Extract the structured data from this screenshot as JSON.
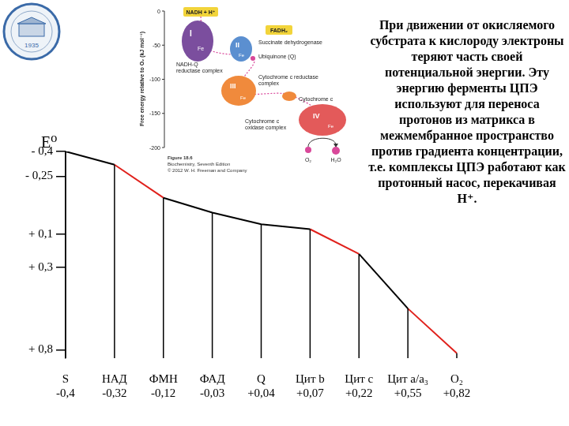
{
  "chart_data": {
    "type": "line",
    "y_label": "E⁰",
    "categories": [
      "S",
      "НАД",
      "ФМН",
      "ФАД",
      "Q",
      "Цит b",
      "Цит c",
      "Цит a/a₃",
      "O₂"
    ],
    "values": [
      -0.4,
      -0.32,
      -0.12,
      -0.03,
      0.04,
      0.07,
      0.22,
      0.55,
      0.82
    ],
    "value_labels": [
      "-0,4",
      "-0,32",
      "-0,12",
      "-0,03",
      "+0,04",
      "+0,07",
      "+0,22",
      "+0,55",
      "+0,82"
    ],
    "colors": [
      "#000000",
      "#000000",
      "#e0201b",
      "#000000",
      "#000000",
      "#000000",
      "#e0201b",
      "#000000",
      "#e0201b"
    ],
    "ylim": [
      -0.4,
      0.85
    ],
    "yticks": [
      {
        "value": -0.4,
        "label": "- 0,4"
      },
      {
        "value": -0.25,
        "label": "- 0,25"
      },
      {
        "value": 0.1,
        "label": "+ 0,1"
      },
      {
        "value": 0.3,
        "label": "+ 0,3"
      },
      {
        "value": 0.8,
        "label": "+ 0,8"
      }
    ],
    "grid": false
  },
  "text_block": "При движении от окисляемого субстрата к кислороду электроны теряют часть своей потенциальной энергии. Эту энергию ферменты ЦПЭ используют для переноса протонов из матрикса в межмембранное пространство против градиента концентрации, т.е. комплексы ЦПЭ работают как протонный насос, перекачивая H⁺.",
  "inset": {
    "y_label": "Free energy relative to O₂ (kJ mol⁻¹)",
    "ylim": [
      -200,
      0
    ],
    "yticks": [
      0,
      -50,
      -100,
      -150,
      -200
    ],
    "labels": {
      "nadh": "NADH + H⁺",
      "fadh": "FADH₂",
      "succ": "Succinate dehydrogenase",
      "c1": [
        "NADH-Q",
        "reductase complex"
      ],
      "q": "Ubiquinone (Q)",
      "c3": [
        "Cytochrome c reductase",
        "complex"
      ],
      "cytc": "Cytochrome c",
      "c4": [
        "Cytochrome c",
        "oxidase complex"
      ],
      "o2": "O₂",
      "h2o": "H₂O"
    },
    "complexes": [
      "I",
      "II",
      "III",
      "IV"
    ],
    "metal": "Fe",
    "caption": [
      "Figure 18.6",
      "Biochemistry, Seventh Edition",
      "© 2012 W. H. Freeman and Company"
    ]
  },
  "logo": {
    "text": "1935"
  }
}
